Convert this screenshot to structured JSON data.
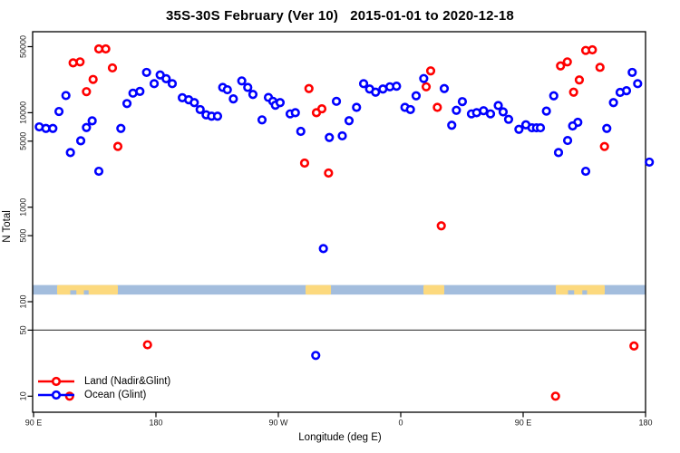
{
  "title": "35S-30S February (Ver 10)   2015-01-01 to 2020-12-18",
  "x_axis": {
    "label": "Longitude (deg E)",
    "ticks": [
      {
        "deg": 0,
        "label": "90 E"
      },
      {
        "deg": 90,
        "label": "180"
      },
      {
        "deg": 180,
        "label": "90 W"
      },
      {
        "deg": 270,
        "label": "0"
      },
      {
        "deg": 360,
        "label": "90 E"
      },
      {
        "deg": 450,
        "label": "180"
      }
    ]
  },
  "y_axis": {
    "label": "N Total",
    "ticks": [
      {
        "value": 50000,
        "label": "50000"
      },
      {
        "value": 10000,
        "label": "10000"
      },
      {
        "value": 5000,
        "label": "5000"
      },
      {
        "value": 1000,
        "label": "1000"
      },
      {
        "value": 500,
        "label": "500"
      },
      {
        "value": 100,
        "label": "100"
      },
      {
        "value": 50,
        "label": "50"
      },
      {
        "value": 10,
        "label": "10"
      }
    ]
  },
  "legend": {
    "items": [
      {
        "label": "Land (Nadir&Glint)",
        "color": "#ff0000"
      },
      {
        "label": "Ocean (Glint)",
        "color": "#0000ff"
      }
    ]
  },
  "colors": {
    "land_series": "#ff0000",
    "ocean_series": "#0000ff",
    "map_ocean": "#a3bddd",
    "map_land": "#fcd97e",
    "reference_line": "#4d4d4d",
    "axis": "#000000"
  },
  "chart_data": {
    "type": "scatter",
    "x_axis_note": "longitude wrapped: 90E..180..90W..0..90E..180 (450 deg span)",
    "x_range_deg": [
      0,
      450
    ],
    "y_scale": "log10",
    "y_range": [
      7,
      75000
    ],
    "reference_line_n": 50,
    "map_band": {
      "n_top": 150,
      "n_bottom": 119,
      "land_segments_deg": [
        [
          17.3,
          62
        ],
        [
          200,
          218.7
        ],
        [
          286.7,
          302
        ],
        [
          384,
          420
        ]
      ],
      "ocean_notches_deg": [
        [
          27,
          31.5
        ],
        [
          37,
          40.5
        ],
        [
          393,
          397.5
        ],
        [
          403.5,
          407
        ]
      ]
    },
    "series": [
      {
        "name": "Land (Nadir&Glint)",
        "color": "#ff0000",
        "points": [
          [
            29.1,
            33700
          ],
          [
            34.2,
            34500
          ],
          [
            48,
            47300
          ],
          [
            53.1,
            47300
          ],
          [
            58,
            29800
          ],
          [
            43.8,
            22500
          ],
          [
            38.9,
            16700
          ],
          [
            62,
            4400
          ],
          [
            202.5,
            18000
          ],
          [
            208,
            10000
          ],
          [
            212,
            11000
          ],
          [
            199.3,
            2930
          ],
          [
            216.9,
            2300
          ],
          [
            292,
            27700
          ],
          [
            288.7,
            18800
          ],
          [
            296.9,
            11400
          ],
          [
            406,
            45600
          ],
          [
            410.9,
            46300
          ],
          [
            387.5,
            31300
          ],
          [
            392.5,
            34500
          ],
          [
            416.5,
            30200
          ],
          [
            401.3,
            22200
          ],
          [
            397.1,
            16500
          ],
          [
            419.8,
            4390
          ],
          [
            83.8,
            35
          ],
          [
            299.8,
            635
          ],
          [
            441.5,
            34
          ],
          [
            383.8,
            10
          ],
          [
            26.5,
            10
          ]
        ]
      },
      {
        "name": "Ocean (Glint)",
        "color": "#0000ff",
        "points": [
          [
            4.2,
            7080
          ],
          [
            9.1,
            6820
          ],
          [
            14.2,
            6820
          ],
          [
            18.7,
            10300
          ],
          [
            23.8,
            15200
          ],
          [
            43.1,
            8200
          ],
          [
            38.9,
            6970
          ],
          [
            34.7,
            5050
          ],
          [
            27.1,
            3790
          ],
          [
            48,
            2400
          ],
          [
            64.2,
            6820
          ],
          [
            68.7,
            12500
          ],
          [
            73.1,
            16100
          ],
          [
            78.2,
            16800
          ],
          [
            83.1,
            26700
          ],
          [
            88.7,
            20300
          ],
          [
            93.1,
            25100
          ],
          [
            97.5,
            22900
          ],
          [
            102,
            20300
          ],
          [
            109.4,
            14400
          ],
          [
            114.1,
            13700
          ],
          [
            118.2,
            12800
          ],
          [
            122.5,
            10800
          ],
          [
            126.9,
            9500
          ],
          [
            130.9,
            9180
          ],
          [
            135.3,
            9180
          ],
          [
            139.1,
            18500
          ],
          [
            142.5,
            17500
          ],
          [
            146.9,
            14000
          ],
          [
            153.1,
            21700
          ],
          [
            157.5,
            18500
          ],
          [
            161.3,
            15600
          ],
          [
            168,
            8400
          ],
          [
            172.7,
            14500
          ],
          [
            176,
            13200
          ],
          [
            177.8,
            12000
          ],
          [
            181.3,
            12800
          ],
          [
            188.7,
            9720
          ],
          [
            192.5,
            10000
          ],
          [
            196.5,
            6350
          ],
          [
            217.5,
            5470
          ],
          [
            222.7,
            13200
          ],
          [
            227,
            5690
          ],
          [
            232,
            8220
          ],
          [
            237.5,
            11400
          ],
          [
            242.7,
            20300
          ],
          [
            247.1,
            17800
          ],
          [
            251.5,
            16500
          ],
          [
            256.9,
            17800
          ],
          [
            262,
            18800
          ],
          [
            266.9,
            19100
          ],
          [
            273.1,
            11400
          ],
          [
            277.1,
            10800
          ],
          [
            281.3,
            15100
          ],
          [
            286.9,
            23000
          ],
          [
            302,
            18000
          ],
          [
            307.5,
            7360
          ],
          [
            310.9,
            10600
          ],
          [
            315.3,
            13100
          ],
          [
            322,
            9720
          ],
          [
            325.8,
            10000
          ],
          [
            330.9,
            10500
          ],
          [
            336,
            9720
          ],
          [
            341.7,
            11900
          ],
          [
            345.3,
            10200
          ],
          [
            349.3,
            8510
          ],
          [
            356.9,
            6670
          ],
          [
            362,
            7450
          ],
          [
            366.5,
            6920
          ],
          [
            369.8,
            6920
          ],
          [
            372.7,
            6920
          ],
          [
            377.1,
            10400
          ],
          [
            382.5,
            15100
          ],
          [
            440.2,
            26700
          ],
          [
            444.2,
            20300
          ],
          [
            436,
            17100
          ],
          [
            431.3,
            16400
          ],
          [
            426.4,
            12800
          ],
          [
            421.5,
            6820
          ],
          [
            400.2,
            7910
          ],
          [
            396.4,
            7240
          ],
          [
            392.7,
            5080
          ],
          [
            386,
            3790
          ],
          [
            406,
            2400
          ],
          [
            213.1,
            365
          ],
          [
            207.5,
            27
          ],
          [
            452.8,
            3000
          ]
        ]
      }
    ]
  }
}
